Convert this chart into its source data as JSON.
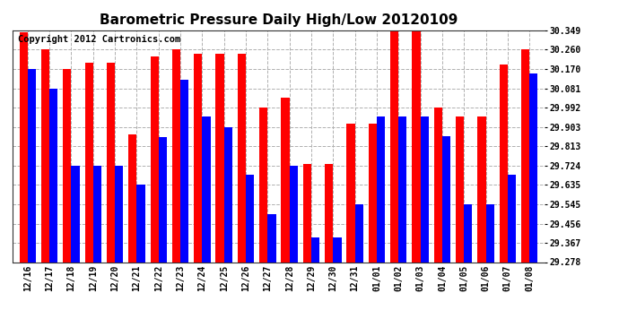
{
  "title": "Barometric Pressure Daily High/Low 20120109",
  "copyright": "Copyright 2012 Cartronics.com",
  "categories": [
    "12/16",
    "12/17",
    "12/18",
    "12/19",
    "12/20",
    "12/21",
    "12/22",
    "12/23",
    "12/24",
    "12/25",
    "12/26",
    "12/27",
    "12/28",
    "12/29",
    "12/30",
    "12/31",
    "01/01",
    "01/02",
    "01/03",
    "01/04",
    "01/05",
    "01/06",
    "01/07",
    "01/08"
  ],
  "high_values": [
    30.34,
    30.26,
    30.17,
    30.2,
    30.2,
    29.87,
    30.23,
    30.26,
    30.24,
    30.24,
    30.24,
    29.992,
    30.04,
    29.73,
    29.73,
    29.92,
    29.92,
    30.349,
    30.349,
    29.992,
    29.95,
    29.95,
    30.19,
    30.26
  ],
  "low_values": [
    30.17,
    30.081,
    29.724,
    29.724,
    29.724,
    29.635,
    29.856,
    30.12,
    29.95,
    29.903,
    29.68,
    29.5,
    29.724,
    29.39,
    29.39,
    29.545,
    29.95,
    29.95,
    29.95,
    29.86,
    29.545,
    29.545,
    29.68,
    30.15
  ],
  "bar_color_high": "#ff0000",
  "bar_color_low": "#0000ff",
  "background_color": "#ffffff",
  "grid_color": "#b0b0b0",
  "yticks": [
    29.278,
    29.367,
    29.456,
    29.545,
    29.635,
    29.724,
    29.813,
    29.903,
    29.992,
    30.081,
    30.17,
    30.26,
    30.349
  ],
  "ymin": 29.278,
  "ymax": 30.349,
  "title_fontsize": 11,
  "copyright_fontsize": 7.5
}
